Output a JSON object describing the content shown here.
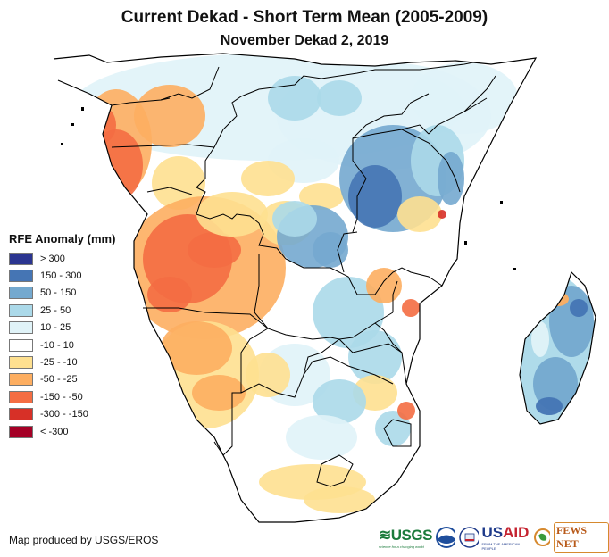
{
  "header": {
    "title": "Current Dekad - Short Term Mean (2005-2009)",
    "subtitle": "November Dekad 2, 2019"
  },
  "legend": {
    "title": "RFE Anomaly (mm)",
    "items": [
      {
        "label": "> 300",
        "color": "#2b3590"
      },
      {
        "label": "150 - 300",
        "color": "#4575b4"
      },
      {
        "label": "50 - 150",
        "color": "#74a9cf"
      },
      {
        "label": "25 - 50",
        "color": "#abd9e9"
      },
      {
        "label": "10 - 25",
        "color": "#e0f3f8"
      },
      {
        "label": "-10 - 10",
        "color": "#ffffff"
      },
      {
        "label": "-25 - -10",
        "color": "#fee090"
      },
      {
        "label": "-50 - -25",
        "color": "#fdae61"
      },
      {
        "label": "-150 - -50",
        "color": "#f46d43"
      },
      {
        "label": "-300 - -150",
        "color": "#d73027"
      },
      {
        "label": "< -300",
        "color": "#a50026"
      }
    ]
  },
  "footer": {
    "credit": "Map produced by USGS/EROS",
    "logos": {
      "usgs": "USGS",
      "usgs_tagline": "science for a changing world",
      "usaid_a": "US",
      "usaid_b": "AID",
      "usaid_tagline": "FROM THE AMERICAN PEOPLE",
      "fews": "FEWS NET"
    }
  },
  "map": {
    "region": "Central, Eastern and Southern Africa",
    "land_base_color": "#ffffff",
    "border_color": "#000000"
  }
}
